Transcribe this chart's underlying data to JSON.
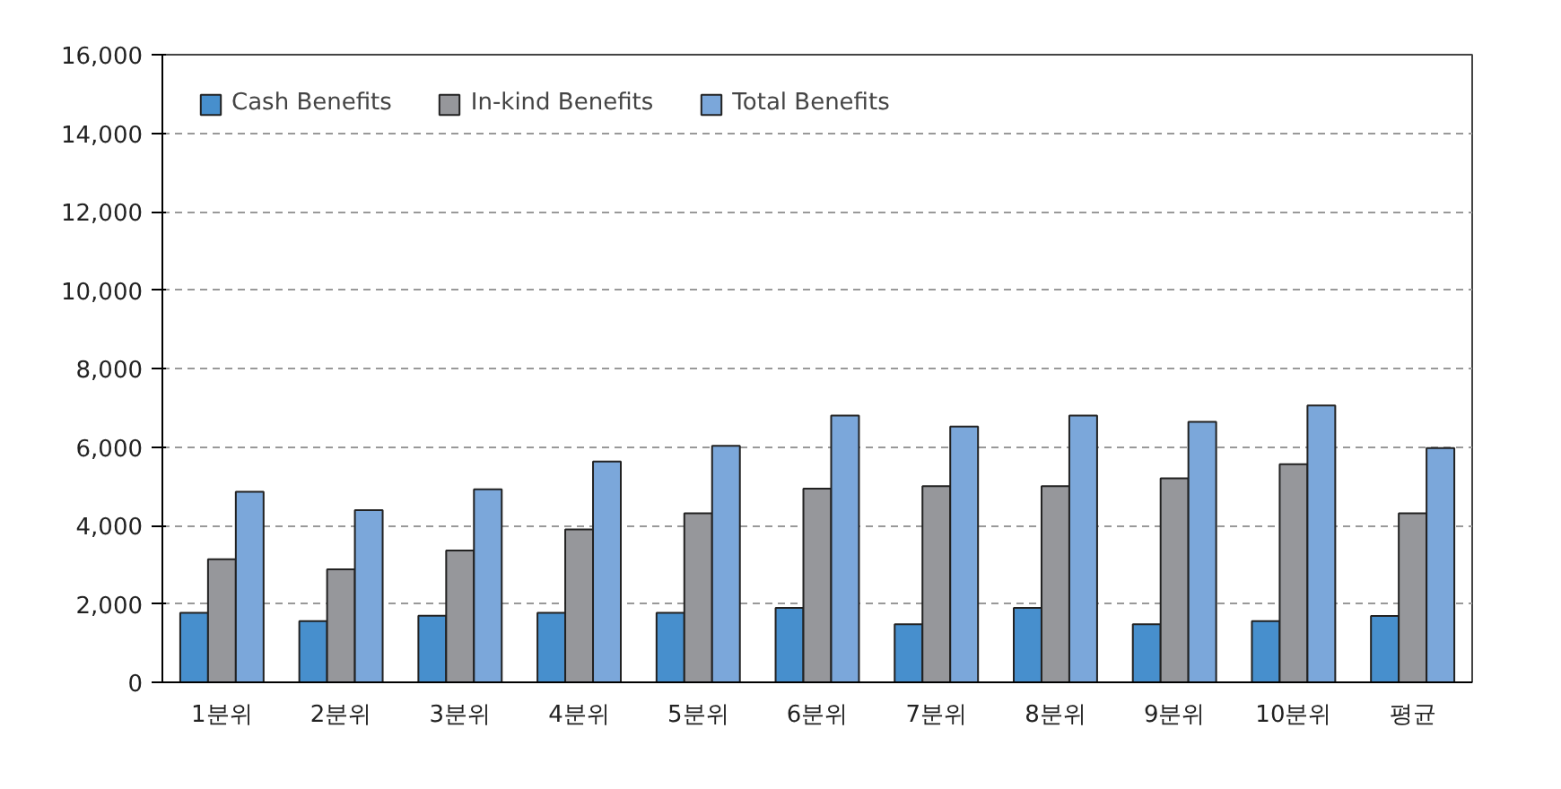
{
  "chart_data": {
    "type": "bar",
    "categories": [
      "1분위",
      "2분위",
      "3분위",
      "4분위",
      "5분위",
      "6분위",
      "7분위",
      "8분위",
      "9분위",
      "10분위",
      "평균"
    ],
    "series": [
      {
        "name": "Cash Benefits",
        "color": "#478fcd",
        "values": [
          1770,
          1560,
          1700,
          1770,
          1770,
          1900,
          1480,
          1900,
          1480,
          1560,
          1690
        ]
      },
      {
        "name": "In-kind Benefits",
        "color": "#96979b",
        "values": [
          3140,
          2880,
          3360,
          3900,
          4310,
          4940,
          5000,
          5000,
          5200,
          5560,
          4310
        ]
      },
      {
        "name": "Total Benefits",
        "color": "#7ba7da",
        "values": [
          4860,
          4390,
          4920,
          5630,
          6030,
          6800,
          6520,
          6800,
          6640,
          7060,
          5970
        ]
      }
    ],
    "ylim": [
      0,
      16000
    ],
    "yticks": [
      {
        "value": 0,
        "label": "0"
      },
      {
        "value": 2000,
        "label": "2,000"
      },
      {
        "value": 4000,
        "label": "4,000"
      },
      {
        "value": 6000,
        "label": "6,000"
      },
      {
        "value": 8000,
        "label": "8,000"
      },
      {
        "value": 10000,
        "label": "10,000"
      },
      {
        "value": 12000,
        "label": "12,000"
      },
      {
        "value": 14000,
        "label": "14,000"
      },
      {
        "value": 16000,
        "label": "16,000"
      }
    ],
    "grid": "y",
    "legend": "top left"
  }
}
